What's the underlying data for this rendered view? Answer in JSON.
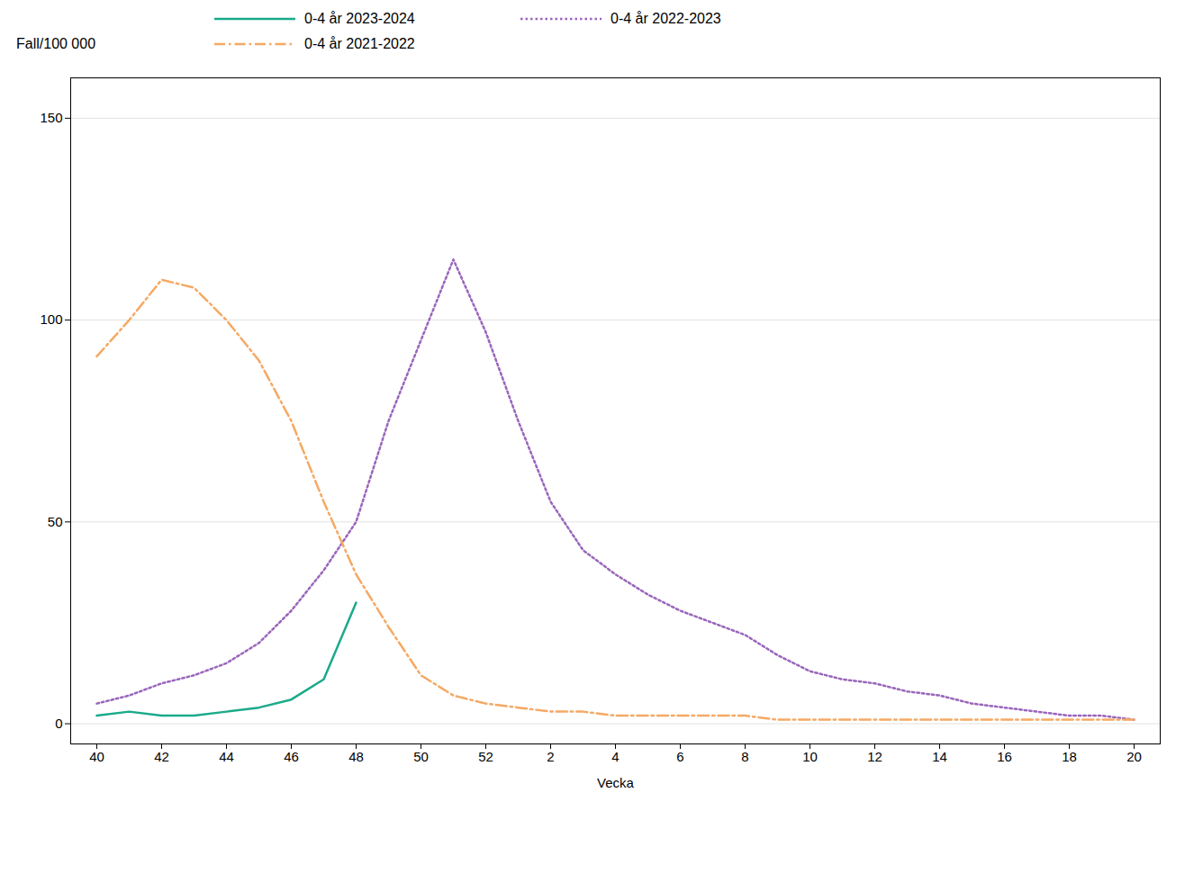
{
  "chart_data": {
    "type": "line",
    "x_label": "Vecka",
    "y_label": "Fall/100 000",
    "categories": [
      "40",
      null,
      "42",
      null,
      "44",
      null,
      "46",
      null,
      "48",
      null,
      "50",
      null,
      "52",
      null,
      "2",
      null,
      "4",
      null,
      "6",
      null,
      "8",
      null,
      "10",
      null,
      "12",
      null,
      "14",
      null,
      "16",
      null,
      "18",
      null,
      "20"
    ],
    "series": [
      {
        "name": "0-4 år 2023-2024",
        "color": "#1aaa8a",
        "line_style": "solid",
        "values": [
          2,
          3,
          2,
          2,
          3,
          4,
          6,
          11,
          30,
          null,
          null,
          null,
          null,
          null,
          null,
          null,
          null,
          null,
          null,
          null,
          null,
          null,
          null,
          null,
          null,
          null,
          null,
          null,
          null,
          null,
          null,
          null,
          null
        ]
      },
      {
        "name": "0-4 år 2022-2023",
        "color": "#9966bb",
        "line_style": "dotted",
        "values": [
          5,
          7,
          10,
          12,
          15,
          20,
          28,
          38,
          50,
          75,
          95,
          115,
          97,
          75,
          55,
          43,
          37,
          32,
          28,
          25,
          22,
          17,
          13,
          11,
          10,
          8,
          7,
          5,
          4,
          3,
          2,
          2,
          1
        ]
      },
      {
        "name": "0-4 år 2021-2022",
        "color": "#f5a964",
        "line_style": "dashdot",
        "values": [
          91,
          100,
          110,
          108,
          100,
          90,
          75,
          55,
          37,
          24,
          12,
          7,
          5,
          4,
          3,
          3,
          2,
          2,
          2,
          2,
          2,
          1,
          1,
          1,
          1,
          1,
          1,
          1,
          1,
          1,
          1,
          1,
          1
        ]
      }
    ],
    "ylim": [
      -5,
      160
    ],
    "yticks": [
      0,
      50,
      100,
      150
    ],
    "grid": true
  }
}
